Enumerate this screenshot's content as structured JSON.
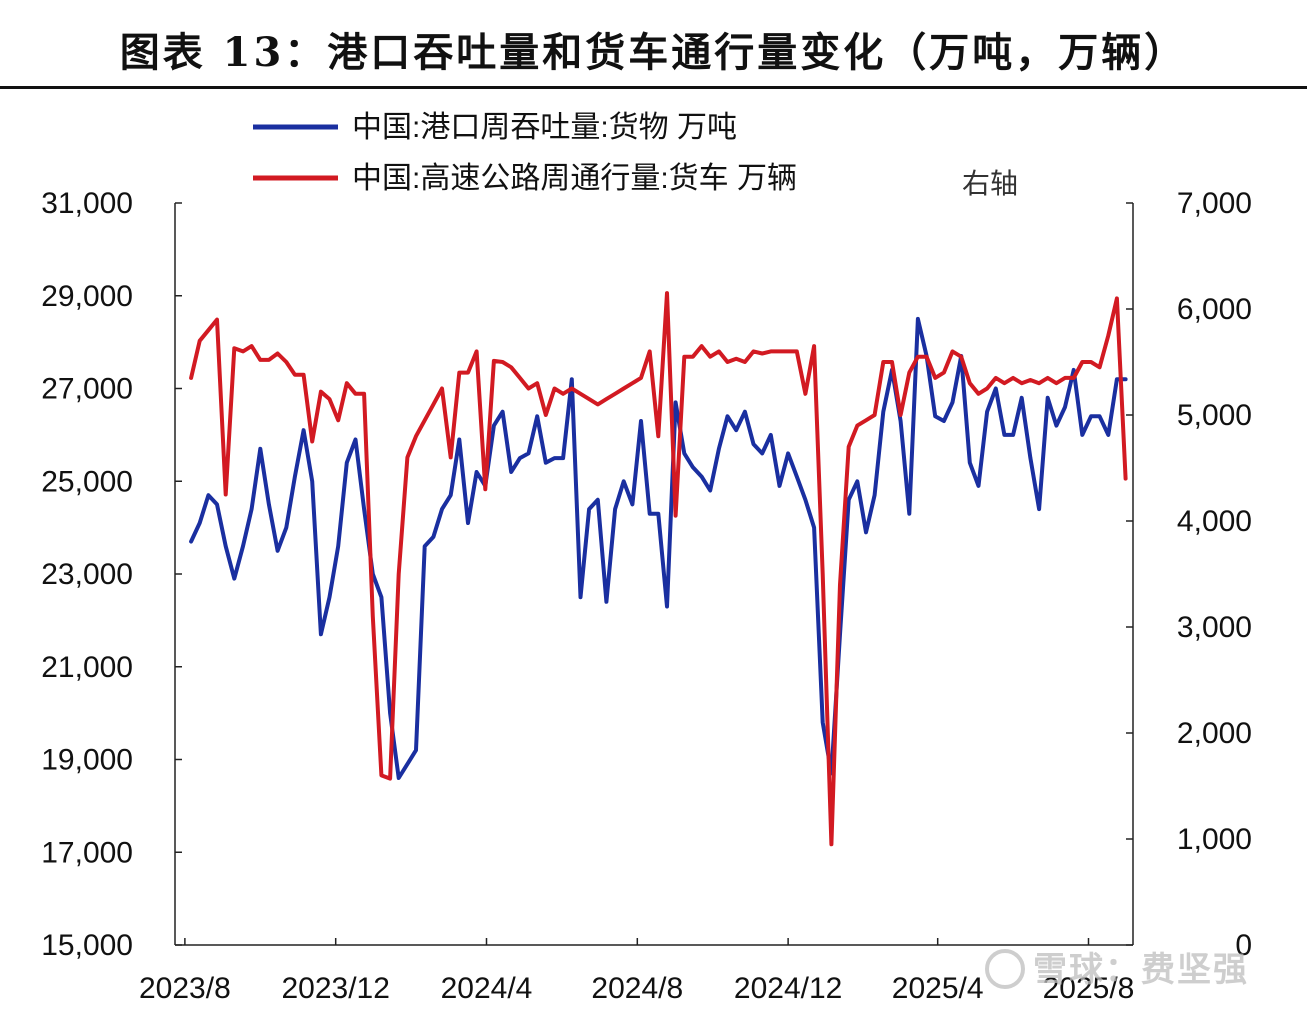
{
  "title": "图表 13：港口吞吐量和货车通行量变化（万吨，万辆）",
  "watermark": "雪球：费坚强",
  "chart_data": {
    "type": "line",
    "title": "图表 13：港口吞吐量和货车通行量变化（万吨，万辆）",
    "right_axis_note": "右轴",
    "x_tick_labels": [
      "2023/8",
      "2023/12",
      "2024/4",
      "2024/8",
      "2024/12",
      "2025/4",
      "2025/8"
    ],
    "x_range": [
      "2023-08",
      "2025-09"
    ],
    "y_left": {
      "ticks": [
        "15,000",
        "17,000",
        "19,000",
        "21,000",
        "23,000",
        "25,000",
        "27,000",
        "29,000",
        "31,000"
      ],
      "ylim": [
        15000,
        31000
      ]
    },
    "y_right": {
      "ticks": [
        "0",
        "1,000",
        "2,000",
        "3,000",
        "4,000",
        "5,000",
        "6,000",
        "7,000"
      ],
      "ylim": [
        0,
        7000
      ]
    },
    "grid": false,
    "legend_position": "top",
    "series": [
      {
        "name": "中国:港口周吞吐量:货物 万吨",
        "axis": "left",
        "color": "#1a2fa0",
        "x": [
          "2023-08-06",
          "2023-08-13",
          "2023-08-20",
          "2023-08-27",
          "2023-09-03",
          "2023-09-10",
          "2023-09-17",
          "2023-09-24",
          "2023-10-01",
          "2023-10-08",
          "2023-10-15",
          "2023-10-22",
          "2023-10-29",
          "2023-11-05",
          "2023-11-12",
          "2023-11-19",
          "2023-11-26",
          "2023-12-03",
          "2023-12-10",
          "2023-12-17",
          "2023-12-24",
          "2023-12-31",
          "2024-01-07",
          "2024-01-14",
          "2024-01-21",
          "2024-01-28",
          "2024-02-04",
          "2024-02-11",
          "2024-02-18",
          "2024-02-25",
          "2024-03-03",
          "2024-03-10",
          "2024-03-17",
          "2024-03-24",
          "2024-03-31",
          "2024-04-07",
          "2024-04-14",
          "2024-04-21",
          "2024-04-28",
          "2024-05-05",
          "2024-05-12",
          "2024-05-19",
          "2024-05-26",
          "2024-06-02",
          "2024-06-09",
          "2024-06-16",
          "2024-06-23",
          "2024-06-30",
          "2024-07-07",
          "2024-07-14",
          "2024-07-21",
          "2024-07-28",
          "2024-08-04",
          "2024-08-11",
          "2024-08-18",
          "2024-08-25",
          "2024-09-01",
          "2024-09-08",
          "2024-09-15",
          "2024-09-22",
          "2024-09-29",
          "2024-10-06",
          "2024-10-13",
          "2024-10-20",
          "2024-10-27",
          "2024-11-03",
          "2024-11-10",
          "2024-11-17",
          "2024-11-24",
          "2024-12-01",
          "2024-12-08",
          "2024-12-15",
          "2024-12-22",
          "2024-12-29",
          "2025-01-05",
          "2025-01-12",
          "2025-01-19",
          "2025-01-26",
          "2025-02-02",
          "2025-02-09",
          "2025-02-16",
          "2025-02-23",
          "2025-03-02",
          "2025-03-09",
          "2025-03-16",
          "2025-03-23",
          "2025-03-30",
          "2025-04-06",
          "2025-04-13",
          "2025-04-20",
          "2025-04-27",
          "2025-05-04",
          "2025-05-11",
          "2025-05-18",
          "2025-05-25",
          "2025-06-01",
          "2025-06-08",
          "2025-06-15",
          "2025-06-22",
          "2025-06-29",
          "2025-07-06",
          "2025-07-13",
          "2025-07-20",
          "2025-07-27",
          "2025-08-03",
          "2025-08-10",
          "2025-08-17",
          "2025-08-24",
          "2025-08-31"
        ],
        "values": [
          23700,
          24100,
          24700,
          24500,
          23600,
          22900,
          23600,
          24400,
          25700,
          24500,
          23500,
          24000,
          25100,
          26100,
          25000,
          21700,
          22500,
          23600,
          25400,
          25900,
          24400,
          23000,
          22500,
          20000,
          18600,
          18900,
          19200,
          23600,
          23800,
          24400,
          24700,
          25900,
          24100,
          25200,
          24900,
          26200,
          26500,
          25200,
          25500,
          25600,
          26400,
          25400,
          25500,
          25500,
          27200,
          22500,
          24400,
          24600,
          22400,
          24400,
          25000,
          24500,
          26300,
          24300,
          24300,
          22300,
          26700,
          25600,
          25300,
          25100,
          24800,
          25700,
          26400,
          26100,
          26500,
          25800,
          25600,
          26000,
          24900,
          25600,
          25100,
          24600,
          24000,
          19800,
          18700,
          21700,
          24600,
          25000,
          23900,
          24700,
          26500,
          27400,
          26300,
          24300,
          28500,
          27700,
          26400,
          26300,
          26700,
          27700,
          25400,
          24900,
          26500,
          27000,
          26000,
          26000,
          26800,
          25500,
          24400,
          26800,
          26200,
          26600,
          27400,
          26000,
          26400,
          26400,
          26000,
          27200,
          27200
        ]
      },
      {
        "name": "中国:高速公路周通行量:货车 万辆",
        "axis": "right",
        "color": "#d21a22",
        "x": [
          "2023-08-06",
          "2023-08-13",
          "2023-08-20",
          "2023-08-27",
          "2023-09-03",
          "2023-09-10",
          "2023-09-17",
          "2023-09-24",
          "2023-10-01",
          "2023-10-08",
          "2023-10-15",
          "2023-10-22",
          "2023-10-29",
          "2023-11-05",
          "2023-11-12",
          "2023-11-19",
          "2023-11-26",
          "2023-12-03",
          "2023-12-10",
          "2023-12-17",
          "2023-12-24",
          "2023-12-31",
          "2024-01-07",
          "2024-01-14",
          "2024-01-21",
          "2024-01-28",
          "2024-02-04",
          "2024-02-11",
          "2024-02-18",
          "2024-02-25",
          "2024-03-03",
          "2024-03-10",
          "2024-03-17",
          "2024-03-24",
          "2024-03-31",
          "2024-04-07",
          "2024-04-14",
          "2024-04-21",
          "2024-04-28",
          "2024-05-05",
          "2024-05-12",
          "2024-05-19",
          "2024-05-26",
          "2024-06-02",
          "2024-06-09",
          "2024-06-16",
          "2024-06-23",
          "2024-06-30",
          "2024-07-07",
          "2024-07-14",
          "2024-07-21",
          "2024-07-28",
          "2024-08-04",
          "2024-08-11",
          "2024-08-18",
          "2024-08-25",
          "2024-09-01",
          "2024-09-08",
          "2024-09-15",
          "2024-09-22",
          "2024-09-29",
          "2024-10-06",
          "2024-10-13",
          "2024-10-20",
          "2024-10-27",
          "2024-11-03",
          "2024-11-10",
          "2024-11-17",
          "2024-11-24",
          "2024-12-01",
          "2024-12-08",
          "2024-12-15",
          "2024-12-22",
          "2024-12-29",
          "2025-01-05",
          "2025-01-12",
          "2025-01-19",
          "2025-01-26",
          "2025-02-02",
          "2025-02-09",
          "2025-02-16",
          "2025-02-23",
          "2025-03-02",
          "2025-03-09",
          "2025-03-16",
          "2025-03-23",
          "2025-03-30",
          "2025-04-06",
          "2025-04-13",
          "2025-04-20",
          "2025-04-27",
          "2025-05-04",
          "2025-05-11",
          "2025-05-18",
          "2025-05-25",
          "2025-06-01",
          "2025-06-08",
          "2025-06-15",
          "2025-06-22",
          "2025-06-29",
          "2025-07-06",
          "2025-07-13",
          "2025-07-20",
          "2025-07-27",
          "2025-08-03",
          "2025-08-10",
          "2025-08-17",
          "2025-08-24",
          "2025-08-31"
        ],
        "values": [
          5350,
          5700,
          5800,
          5900,
          4250,
          5630,
          5600,
          5650,
          5520,
          5520,
          5580,
          5500,
          5380,
          5380,
          4750,
          5220,
          5150,
          4950,
          5300,
          5200,
          5200,
          3100,
          1600,
          1570,
          3500,
          4600,
          4800,
          4950,
          5100,
          5250,
          4600,
          5400,
          5400,
          5600,
          4300,
          5510,
          5500,
          5450,
          5350,
          5250,
          5300,
          5000,
          5250,
          5200,
          5250,
          5200,
          5150,
          5100,
          5150,
          5200,
          5250,
          5300,
          5350,
          5600,
          4800,
          6150,
          4050,
          5550,
          5550,
          5650,
          5550,
          5600,
          5500,
          5530,
          5500,
          5600,
          5580,
          5600,
          5600,
          5600,
          5600,
          5200,
          5650,
          3500,
          950,
          3400,
          4700,
          4900,
          4950,
          5000,
          5500,
          5500,
          5000,
          5400,
          5550,
          5550,
          5350,
          5400,
          5600,
          5550,
          5300,
          5200,
          5250,
          5350,
          5300,
          5350,
          5300,
          5330,
          5300,
          5350,
          5300,
          5350,
          5350,
          5500,
          5500,
          5450,
          5750,
          6100,
          4400
        ]
      }
    ]
  }
}
